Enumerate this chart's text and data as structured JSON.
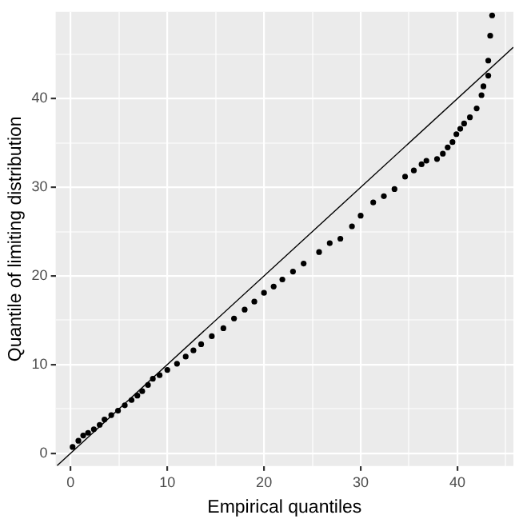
{
  "chart_data": {
    "type": "scatter",
    "xlabel": "Empirical quantiles",
    "ylabel": "Quantile of limiting distribution",
    "xlim": [
      -1.55,
      45.8
    ],
    "ylim": [
      -1.45,
      49.8
    ],
    "xticks": [
      0,
      {
        "value": 5,
        "label": null
      },
      10,
      {
        "value": 15,
        "label": null
      },
      20,
      {
        "value": 25,
        "label": null
      },
      30,
      {
        "value": 35,
        "label": null
      },
      40,
      {
        "value": 45,
        "label": null
      }
    ],
    "yticks": [
      0,
      {
        "value": 5,
        "label": null
      },
      10,
      {
        "value": 15,
        "label": null
      },
      20,
      {
        "value": 25,
        "label": null
      },
      30,
      {
        "value": 35,
        "label": null
      },
      40,
      {
        "value": 45,
        "label": null
      }
    ],
    "grid": true,
    "marker": "circle",
    "series": [
      {
        "color": "#000000",
        "x": [
          0.2,
          0.8,
          1.3,
          1.8,
          2.4,
          3.0,
          3.5,
          4.2,
          4.9,
          5.6,
          6.3,
          6.9,
          7.4,
          8.0,
          8.5,
          9.2,
          10.0,
          11.0,
          11.9,
          12.7,
          13.5,
          14.6,
          15.8,
          16.9,
          18.0,
          19.0,
          20.0,
          21.0,
          21.9,
          23.0,
          24.1,
          25.7,
          26.8,
          27.9,
          29.1,
          30.0,
          31.3,
          32.4,
          33.5,
          34.6,
          35.5,
          36.3,
          36.8,
          37.9,
          38.5,
          39.0,
          39.5,
          39.9,
          40.3,
          40.7,
          41.3,
          42.0,
          42.5,
          42.7,
          43.2,
          43.2,
          43.4,
          43.6
        ],
        "values": [
          0.7,
          1.4,
          2.0,
          2.3,
          2.7,
          3.2,
          3.8,
          4.3,
          4.8,
          5.4,
          6.0,
          6.5,
          7.0,
          7.7,
          8.4,
          8.8,
          9.4,
          10.1,
          10.9,
          11.6,
          12.3,
          13.2,
          14.1,
          15.2,
          16.2,
          17.1,
          18.1,
          18.8,
          19.6,
          20.5,
          21.4,
          22.7,
          23.7,
          24.2,
          25.6,
          26.8,
          28.3,
          29.0,
          29.8,
          31.2,
          31.9,
          32.6,
          33.0,
          33.2,
          33.8,
          34.5,
          35.1,
          36.0,
          36.6,
          37.2,
          37.9,
          38.9,
          40.4,
          41.4,
          42.6,
          44.3,
          47.1,
          49.4
        ]
      },
      {
        "type": "line",
        "color": "#000000",
        "marker": "none",
        "x": [
          -1.4,
          45.8
        ],
        "values": [
          -1.4,
          45.8
        ]
      }
    ]
  }
}
